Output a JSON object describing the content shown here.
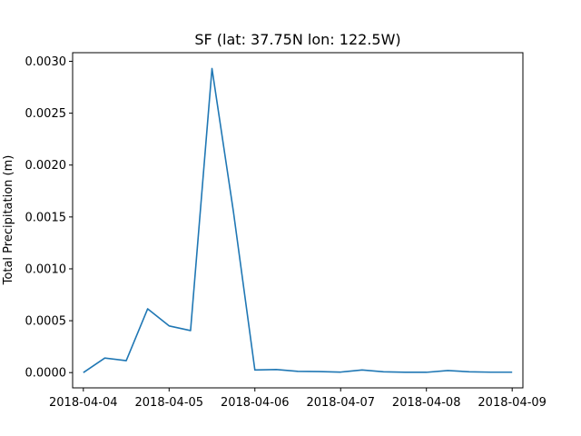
{
  "chart_data": {
    "type": "line",
    "title": "SF (lat: 37.75N lon: 122.5W)",
    "xlabel": "",
    "ylabel": "Total Precipitation (m)",
    "x_ticks": [
      "2018-04-04",
      "2018-04-05",
      "2018-04-06",
      "2018-04-07",
      "2018-04-08",
      "2018-04-09"
    ],
    "y_ticks": [
      "0.0000",
      "0.0005",
      "0.0010",
      "0.0015",
      "0.0020",
      "0.0025",
      "0.0030"
    ],
    "xlim": [
      "2018-04-03T21:00",
      "2018-04-09T03:00"
    ],
    "ylim": [
      -0.000147,
      0.003083
    ],
    "grid": false,
    "series": [
      {
        "color": "#1f77b4",
        "x": [
          "2018-04-04T00:00",
          "2018-04-04T06:00",
          "2018-04-04T12:00",
          "2018-04-04T18:00",
          "2018-04-05T00:00",
          "2018-04-05T06:00",
          "2018-04-05T12:00",
          "2018-04-05T18:00",
          "2018-04-06T00:00",
          "2018-04-06T06:00",
          "2018-04-06T12:00",
          "2018-04-06T18:00",
          "2018-04-07T00:00",
          "2018-04-07T06:00",
          "2018-04-07T12:00",
          "2018-04-07T18:00",
          "2018-04-08T00:00",
          "2018-04-08T06:00",
          "2018-04-08T12:00",
          "2018-04-08T18:00",
          "2018-04-09T00:00"
        ],
        "y": [
          0.0,
          0.00014,
          0.000115,
          0.000615,
          0.00045,
          0.000405,
          0.00293,
          0.00155,
          2.5e-05,
          3e-05,
          1.2e-05,
          1e-05,
          5e-06,
          2.5e-05,
          8e-06,
          3e-06,
          3e-06,
          2e-05,
          8e-06,
          4e-06,
          4e-06
        ]
      }
    ]
  }
}
